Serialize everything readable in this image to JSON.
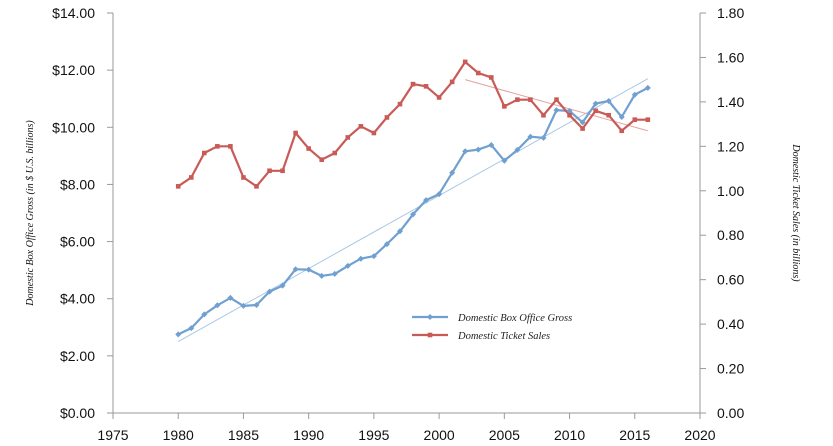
{
  "chart_data": {
    "type": "line",
    "x": [
      1980,
      1981,
      1982,
      1983,
      1984,
      1985,
      1986,
      1987,
      1988,
      1989,
      1990,
      1991,
      1992,
      1993,
      1994,
      1995,
      1996,
      1997,
      1998,
      1999,
      2000,
      2001,
      2002,
      2003,
      2004,
      2005,
      2006,
      2007,
      2008,
      2009,
      2010,
      2011,
      2012,
      2013,
      2014,
      2015,
      2016
    ],
    "series": [
      {
        "name": "Domestic Box Office Gross",
        "axis": "left",
        "color": "#6fa0d0",
        "values": [
          2.75,
          2.97,
          3.45,
          3.77,
          4.03,
          3.75,
          3.78,
          4.25,
          4.46,
          5.03,
          5.02,
          4.8,
          4.87,
          5.15,
          5.4,
          5.49,
          5.91,
          6.36,
          6.95,
          7.45,
          7.66,
          8.41,
          9.16,
          9.22,
          9.38,
          8.83,
          9.21,
          9.67,
          9.63,
          10.6,
          10.57,
          10.17,
          10.83,
          10.92,
          10.36,
          11.14,
          11.38
        ]
      },
      {
        "name": "Domestic Ticket Sales",
        "axis": "right",
        "color": "#c95a56",
        "values": [
          1.02,
          1.06,
          1.17,
          1.2,
          1.2,
          1.06,
          1.02,
          1.09,
          1.09,
          1.26,
          1.19,
          1.14,
          1.17,
          1.24,
          1.29,
          1.26,
          1.33,
          1.39,
          1.48,
          1.47,
          1.42,
          1.49,
          1.58,
          1.53,
          1.51,
          1.38,
          1.41,
          1.41,
          1.34,
          1.41,
          1.34,
          1.28,
          1.36,
          1.34,
          1.27,
          1.32,
          1.32
        ]
      }
    ],
    "trendlines": [
      {
        "series": "Domestic Box Office Gross",
        "color": "#a9c8e6",
        "from": [
          1980,
          2.5
        ],
        "to": [
          2016,
          11.7
        ]
      },
      {
        "series": "Domestic Ticket Sales",
        "color": "#e6a0a0",
        "from": [
          2002,
          1.5
        ],
        "to": [
          2016,
          1.27
        ]
      }
    ],
    "x_ticks": [
      1975,
      1980,
      1985,
      1990,
      1995,
      2000,
      2005,
      2010,
      2015,
      2020
    ],
    "xlim": [
      1975,
      2020
    ],
    "y_left": {
      "label": "Domestic Box Office Gross (in $ U.S. billions)",
      "lim": [
        0,
        14
      ],
      "ticks": [
        0,
        2,
        4,
        6,
        8,
        10,
        12,
        14
      ],
      "tick_labels": [
        "$0.00",
        "$2.00",
        "$4.00",
        "$6.00",
        "$8.00",
        "$10.00",
        "$12.00",
        "$14.00"
      ]
    },
    "y_right": {
      "label": "Domestic Ticket Sales (in billions)",
      "lim": [
        0,
        1.8
      ],
      "ticks": [
        0,
        0.2,
        0.4,
        0.6,
        0.8,
        1.0,
        1.2,
        1.4,
        1.6,
        1.8
      ],
      "tick_labels": [
        "0.00",
        "0.20",
        "0.40",
        "0.60",
        "0.80",
        "1.00",
        "1.20",
        "1.40",
        "1.60",
        "1.80"
      ]
    },
    "grid": false,
    "legend_position": "lower-center"
  }
}
